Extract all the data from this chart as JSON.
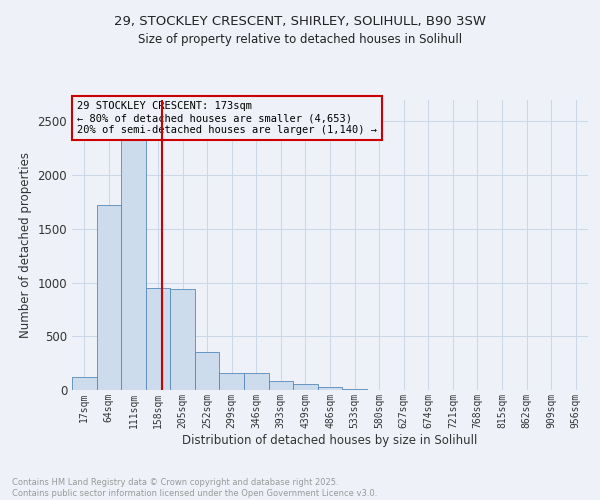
{
  "title_line1": "29, STOCKLEY CRESCENT, SHIRLEY, SOLIHULL, B90 3SW",
  "title_line2": "Size of property relative to detached houses in Solihull",
  "xlabel": "Distribution of detached houses by size in Solihull",
  "ylabel": "Number of detached properties",
  "bar_values": [
    120,
    1720,
    2390,
    950,
    940,
    350,
    155,
    155,
    80,
    55,
    25,
    10,
    0,
    0,
    0,
    0,
    0,
    0,
    0,
    0,
    0
  ],
  "categories": [
    "17sqm",
    "64sqm",
    "111sqm",
    "158sqm",
    "205sqm",
    "252sqm",
    "299sqm",
    "346sqm",
    "393sqm",
    "439sqm",
    "486sqm",
    "533sqm",
    "580sqm",
    "627sqm",
    "674sqm",
    "721sqm",
    "768sqm",
    "815sqm",
    "862sqm",
    "909sqm",
    "956sqm"
  ],
  "bar_color": "#ccdcec",
  "bar_edge_color": "#5588bb",
  "grid_color": "#ccd8e8",
  "background_color": "#eef2f8",
  "vline_x": 3.17,
  "vline_color": "#cc0000",
  "annotation_box_text": "29 STOCKLEY CRESCENT: 173sqm\n← 80% of detached houses are smaller (4,653)\n20% of semi-detached houses are larger (1,140) →",
  "annotation_box_color": "#cc0000",
  "annotation_text_color": "#000000",
  "ylim": [
    0,
    2700
  ],
  "yticks": [
    0,
    500,
    1000,
    1500,
    2000,
    2500
  ],
  "footer_line1": "Contains HM Land Registry data © Crown copyright and database right 2025.",
  "footer_line2": "Contains public sector information licensed under the Open Government Licence v3.0.",
  "footer_color": "#999999",
  "title_color": "#222222"
}
